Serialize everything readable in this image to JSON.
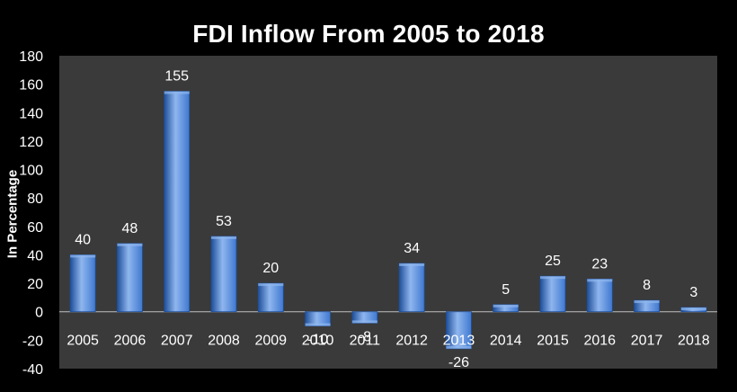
{
  "chart_data": {
    "type": "bar",
    "title": "FDI Inflow From 2005 to 2018",
    "xlabel": "",
    "ylabel": "In Percentage",
    "categories": [
      "2005",
      "2006",
      "2007",
      "2008",
      "2009",
      "2010",
      "2011",
      "2012",
      "2013",
      "2014",
      "2015",
      "2016",
      "2017",
      "2018"
    ],
    "values": [
      40,
      48,
      155,
      53,
      20,
      -10,
      -8,
      34,
      -26,
      5,
      25,
      23,
      8,
      3
    ],
    "ylim": [
      -40,
      180
    ],
    "yticks": [
      -40,
      -20,
      0,
      20,
      40,
      60,
      80,
      100,
      120,
      140,
      160,
      180
    ],
    "grid": false,
    "legend": "none",
    "colors": {
      "background": "#000000",
      "plot_area": "#3a3a3a",
      "bar": "#3f78d0",
      "bar_light": "#8fb6ee",
      "bar_dark": "#1f4f9a",
      "axis": "#bfbfbf",
      "text": "#ffffff"
    }
  }
}
